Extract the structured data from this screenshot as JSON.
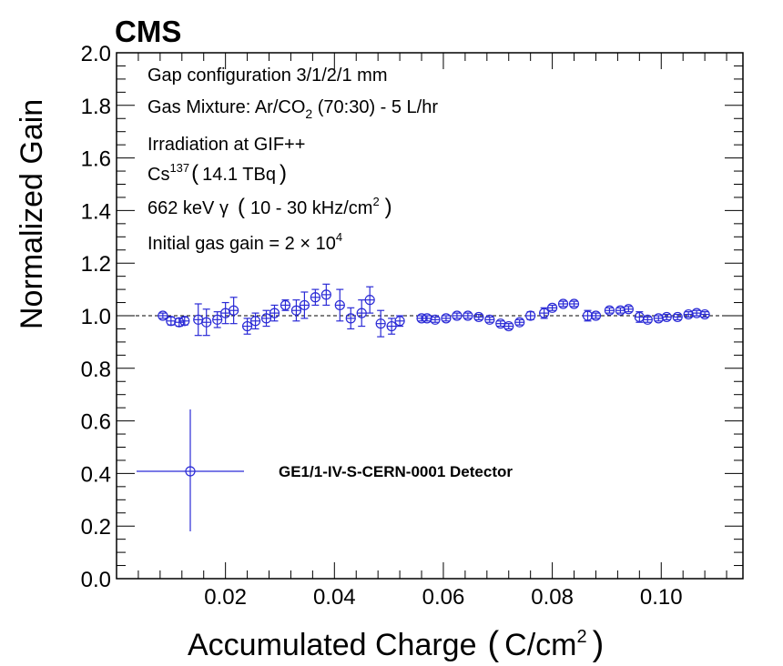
{
  "experiment_label": "CMS",
  "chart_data": {
    "type": "scatter",
    "xlabel": "Accumulated Charge",
    "xlabel_unit": "C/cm",
    "xlabel_unit_exp": "2",
    "ylabel": "Normalized Gain",
    "xlim": [
      0.0,
      0.115
    ],
    "ylim": [
      0.0,
      2.0
    ],
    "x_ticks": [
      0.02,
      0.04,
      0.06,
      0.08,
      0.1
    ],
    "x_tick_labels": [
      "0.02",
      "0.04",
      "0.06",
      "0.08",
      "0.10"
    ],
    "y_ticks": [
      0.0,
      0.2,
      0.4,
      0.6,
      0.8,
      1.0,
      1.2,
      1.4,
      1.6,
      1.8,
      2.0
    ],
    "y_tick_labels": [
      "0.0",
      "0.2",
      "0.4",
      "0.6",
      "0.8",
      "1.0",
      "1.2",
      "1.4",
      "1.6",
      "1.8",
      "2.0"
    ],
    "reference_line": 1.0,
    "grid": false,
    "marker_color": "#2b2bd6",
    "annotations": {
      "line1": "Gap configuration 3/1/2/1 mm",
      "line2_a": "Gas Mixture: Ar/CO",
      "line2_sub": "2",
      "line2_b": " (70:30) - 5 L/hr",
      "line3": "Irradiation at GIF++",
      "line4_a": "Cs",
      "line4_sup": "137",
      "line4_b": "14.1 TBq",
      "line5_a": "662 keV γ",
      "line5_b": "10 - 30 kHz/cm",
      "line5_sup": "2",
      "line6_a": "Initial gas gain = 2 × 10",
      "line6_sup": "4"
    },
    "legend": {
      "label": "GE1/1-IV-S-CERN-0001 Detector",
      "placement": "bottom-left"
    },
    "series": [
      {
        "name": "GE1/1-IV-S-CERN-0001 Detector",
        "points": [
          {
            "x": 0.0085,
            "y": 1.0,
            "err": 0.01
          },
          {
            "x": 0.01,
            "y": 0.98,
            "err": 0.015
          },
          {
            "x": 0.0115,
            "y": 0.975,
            "err": 0.015
          },
          {
            "x": 0.0125,
            "y": 0.98,
            "err": 0.015
          },
          {
            "x": 0.015,
            "y": 0.985,
            "err": 0.06
          },
          {
            "x": 0.0165,
            "y": 0.975,
            "err": 0.05
          },
          {
            "x": 0.0185,
            "y": 0.985,
            "err": 0.03
          },
          {
            "x": 0.02,
            "y": 1.01,
            "err": 0.04
          },
          {
            "x": 0.0215,
            "y": 1.02,
            "err": 0.05
          },
          {
            "x": 0.024,
            "y": 0.96,
            "err": 0.03
          },
          {
            "x": 0.0255,
            "y": 0.98,
            "err": 0.03
          },
          {
            "x": 0.0275,
            "y": 0.99,
            "err": 0.03
          },
          {
            "x": 0.029,
            "y": 1.01,
            "err": 0.03
          },
          {
            "x": 0.031,
            "y": 1.04,
            "err": 0.02
          },
          {
            "x": 0.033,
            "y": 1.02,
            "err": 0.04
          },
          {
            "x": 0.0345,
            "y": 1.04,
            "err": 0.05
          },
          {
            "x": 0.0365,
            "y": 1.07,
            "err": 0.03
          },
          {
            "x": 0.0385,
            "y": 1.08,
            "err": 0.04
          },
          {
            "x": 0.041,
            "y": 1.04,
            "err": 0.06
          },
          {
            "x": 0.043,
            "y": 0.99,
            "err": 0.04
          },
          {
            "x": 0.045,
            "y": 1.01,
            "err": 0.05
          },
          {
            "x": 0.0465,
            "y": 1.06,
            "err": 0.05
          },
          {
            "x": 0.0485,
            "y": 0.97,
            "err": 0.05
          },
          {
            "x": 0.0505,
            "y": 0.96,
            "err": 0.03
          },
          {
            "x": 0.052,
            "y": 0.98,
            "err": 0.02
          },
          {
            "x": 0.056,
            "y": 0.99,
            "err": 0.01
          },
          {
            "x": 0.057,
            "y": 0.99,
            "err": 0.01
          },
          {
            "x": 0.0585,
            "y": 0.985,
            "err": 0.01
          },
          {
            "x": 0.0605,
            "y": 0.99,
            "err": 0.01
          },
          {
            "x": 0.0625,
            "y": 1.0,
            "err": 0.01
          },
          {
            "x": 0.0645,
            "y": 1.0,
            "err": 0.01
          },
          {
            "x": 0.0665,
            "y": 0.995,
            "err": 0.01
          },
          {
            "x": 0.0685,
            "y": 0.985,
            "err": 0.01
          },
          {
            "x": 0.0705,
            "y": 0.97,
            "err": 0.01
          },
          {
            "x": 0.072,
            "y": 0.96,
            "err": 0.01
          },
          {
            "x": 0.074,
            "y": 0.975,
            "err": 0.01
          },
          {
            "x": 0.076,
            "y": 1.0,
            "err": 0.015
          },
          {
            "x": 0.0785,
            "y": 1.01,
            "err": 0.02
          },
          {
            "x": 0.08,
            "y": 1.03,
            "err": 0.01
          },
          {
            "x": 0.082,
            "y": 1.045,
            "err": 0.01
          },
          {
            "x": 0.084,
            "y": 1.045,
            "err": 0.01
          },
          {
            "x": 0.0865,
            "y": 1.0,
            "err": 0.02
          },
          {
            "x": 0.088,
            "y": 1.0,
            "err": 0.01
          },
          {
            "x": 0.0905,
            "y": 1.02,
            "err": 0.01
          },
          {
            "x": 0.0925,
            "y": 1.02,
            "err": 0.01
          },
          {
            "x": 0.094,
            "y": 1.025,
            "err": 0.01
          },
          {
            "x": 0.096,
            "y": 0.995,
            "err": 0.02
          },
          {
            "x": 0.0975,
            "y": 0.985,
            "err": 0.01
          },
          {
            "x": 0.0995,
            "y": 0.99,
            "err": 0.01
          },
          {
            "x": 0.101,
            "y": 0.995,
            "err": 0.01
          },
          {
            "x": 0.103,
            "y": 0.995,
            "err": 0.01
          },
          {
            "x": 0.105,
            "y": 1.005,
            "err": 0.01
          },
          {
            "x": 0.1065,
            "y": 1.01,
            "err": 0.01
          },
          {
            "x": 0.108,
            "y": 1.005,
            "err": 0.01
          }
        ]
      }
    ]
  }
}
